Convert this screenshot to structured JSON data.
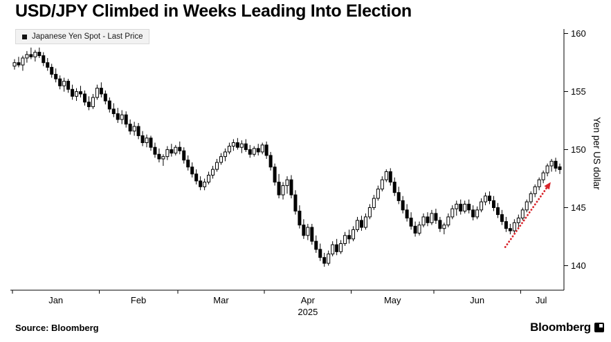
{
  "header": {
    "title": "USD/JPY Climbed in Weeks Leading Into Election"
  },
  "legend": {
    "label": "Japanese Yen Spot - Last Price"
  },
  "footer": {
    "source": "Source: Bloomberg",
    "logo_text": "Bloomberg"
  },
  "chart_data": {
    "type": "candlestick",
    "title": "USD/JPY Climbed in Weeks Leading Into Election",
    "series_name": "Japanese Yen Spot - Last Price",
    "xlabel": "",
    "ylabel": "Yen per US dollar",
    "y_ticks": [
      160,
      155,
      150,
      145,
      140
    ],
    "ylim": [
      138.0,
      160.4
    ],
    "grid": false,
    "legend_position": "top-left",
    "axis_side": "right",
    "year_label": "2025",
    "months": [
      {
        "label": "Jan",
        "days": 21
      },
      {
        "label": "Feb",
        "days": 19
      },
      {
        "label": "Mar",
        "days": 21
      },
      {
        "label": "Apr",
        "days": 21,
        "year": "2025"
      },
      {
        "label": "May",
        "days": 20
      },
      {
        "label": "Jun",
        "days": 21
      },
      {
        "label": "Jul",
        "days": 10
      }
    ],
    "candles_ohlc": [
      [
        157.2,
        157.8,
        156.9,
        157.5
      ],
      [
        157.5,
        158.0,
        157.1,
        157.3
      ],
      [
        157.3,
        158.1,
        156.8,
        157.9
      ],
      [
        157.9,
        158.5,
        157.5,
        158.2
      ],
      [
        158.2,
        158.8,
        157.8,
        158.0
      ],
      [
        158.0,
        158.6,
        157.6,
        158.4
      ],
      [
        158.4,
        158.8,
        157.9,
        158.1
      ],
      [
        158.1,
        158.4,
        157.2,
        157.5
      ],
      [
        157.5,
        157.9,
        156.8,
        157.1
      ],
      [
        157.1,
        157.4,
        156.2,
        156.5
      ],
      [
        156.5,
        157.0,
        155.8,
        156.1
      ],
      [
        156.1,
        156.4,
        155.2,
        155.5
      ],
      [
        155.5,
        156.2,
        155.0,
        155.9
      ],
      [
        155.9,
        156.1,
        154.9,
        155.2
      ],
      [
        155.2,
        155.6,
        154.3,
        154.6
      ],
      [
        154.6,
        155.3,
        154.2,
        155.0
      ],
      [
        155.0,
        155.5,
        154.5,
        154.8
      ],
      [
        154.8,
        155.1,
        153.8,
        154.1
      ],
      [
        154.1,
        154.6,
        153.4,
        153.7
      ],
      [
        153.7,
        154.8,
        153.5,
        154.5
      ],
      [
        154.5,
        155.6,
        154.3,
        155.3
      ],
      [
        155.3,
        155.8,
        154.5,
        154.8
      ],
      [
        154.8,
        155.1,
        153.9,
        154.2
      ],
      [
        154.2,
        154.5,
        153.2,
        153.5
      ],
      [
        153.5,
        154.0,
        152.8,
        153.1
      ],
      [
        153.1,
        153.6,
        152.3,
        152.6
      ],
      [
        152.6,
        153.4,
        152.2,
        153.0
      ],
      [
        153.0,
        153.3,
        151.9,
        152.2
      ],
      [
        152.2,
        152.6,
        151.3,
        151.6
      ],
      [
        151.6,
        152.4,
        151.2,
        152.0
      ],
      [
        152.0,
        152.3,
        150.9,
        151.2
      ],
      [
        151.2,
        151.6,
        150.3,
        150.6
      ],
      [
        150.6,
        151.3,
        150.2,
        151.0
      ],
      [
        151.0,
        151.2,
        149.9,
        150.2
      ],
      [
        150.2,
        150.6,
        149.3,
        149.6
      ],
      [
        149.6,
        150.1,
        148.9,
        149.2
      ],
      [
        149.2,
        149.6,
        148.6,
        149.4
      ],
      [
        149.4,
        150.3,
        149.1,
        150.0
      ],
      [
        150.0,
        150.5,
        149.4,
        149.7
      ],
      [
        149.7,
        150.4,
        149.5,
        150.2
      ],
      [
        150.2,
        150.7,
        149.6,
        149.9
      ],
      [
        149.9,
        150.2,
        148.8,
        149.1
      ],
      [
        149.1,
        149.5,
        148.2,
        148.5
      ],
      [
        148.5,
        148.9,
        147.6,
        147.9
      ],
      [
        147.9,
        148.3,
        147.0,
        147.3
      ],
      [
        147.3,
        147.7,
        146.5,
        146.8
      ],
      [
        146.8,
        147.5,
        146.5,
        147.2
      ],
      [
        147.2,
        148.1,
        147.0,
        147.8
      ],
      [
        147.8,
        148.6,
        147.5,
        148.3
      ],
      [
        148.3,
        149.2,
        148.1,
        148.9
      ],
      [
        148.9,
        149.7,
        148.7,
        149.4
      ],
      [
        149.4,
        150.1,
        149.0,
        149.8
      ],
      [
        149.8,
        150.6,
        149.6,
        150.3
      ],
      [
        150.3,
        150.9,
        149.9,
        150.6
      ],
      [
        150.6,
        151.0,
        150.0,
        150.2
      ],
      [
        150.2,
        150.8,
        149.7,
        150.5
      ],
      [
        150.5,
        150.9,
        149.8,
        150.0
      ],
      [
        150.0,
        150.4,
        149.3,
        149.6
      ],
      [
        149.6,
        150.3,
        149.4,
        150.1
      ],
      [
        150.1,
        150.5,
        149.5,
        149.8
      ],
      [
        149.8,
        150.6,
        149.6,
        150.4
      ],
      [
        150.4,
        150.7,
        149.2,
        149.5
      ],
      [
        149.5,
        149.8,
        148.2,
        148.5
      ],
      [
        148.5,
        148.8,
        146.9,
        147.2
      ],
      [
        147.2,
        147.9,
        145.8,
        146.1
      ],
      [
        146.1,
        147.2,
        145.7,
        146.9
      ],
      [
        146.9,
        147.7,
        146.2,
        147.4
      ],
      [
        147.4,
        147.8,
        145.8,
        146.1
      ],
      [
        146.1,
        146.5,
        144.4,
        144.7
      ],
      [
        144.7,
        145.2,
        143.2,
        143.5
      ],
      [
        143.5,
        144.0,
        142.3,
        142.6
      ],
      [
        142.6,
        143.6,
        142.2,
        143.3
      ],
      [
        143.3,
        143.6,
        141.8,
        142.1
      ],
      [
        142.1,
        142.6,
        141.1,
        141.4
      ],
      [
        141.4,
        141.9,
        140.4,
        140.7
      ],
      [
        140.7,
        141.1,
        139.9,
        140.2
      ],
      [
        140.2,
        141.3,
        140.0,
        141.0
      ],
      [
        141.0,
        142.1,
        140.8,
        141.8
      ],
      [
        141.8,
        142.3,
        140.9,
        141.2
      ],
      [
        141.2,
        142.2,
        141.0,
        141.9
      ],
      [
        141.9,
        142.9,
        141.7,
        142.6
      ],
      [
        142.6,
        143.1,
        141.9,
        142.3
      ],
      [
        142.3,
        143.4,
        142.1,
        143.1
      ],
      [
        143.1,
        144.2,
        142.9,
        143.9
      ],
      [
        143.9,
        144.3,
        143.0,
        143.3
      ],
      [
        143.3,
        144.5,
        143.1,
        144.2
      ],
      [
        144.2,
        145.3,
        144.0,
        145.0
      ],
      [
        145.0,
        146.1,
        144.8,
        145.8
      ],
      [
        145.8,
        146.9,
        145.6,
        146.6
      ],
      [
        146.6,
        147.7,
        146.4,
        147.4
      ],
      [
        147.4,
        148.3,
        147.2,
        148.1
      ],
      [
        148.1,
        148.4,
        146.9,
        147.2
      ],
      [
        147.2,
        147.6,
        146.0,
        146.3
      ],
      [
        146.3,
        146.8,
        145.3,
        145.6
      ],
      [
        145.6,
        146.0,
        144.5,
        144.8
      ],
      [
        144.8,
        145.3,
        143.8,
        144.1
      ],
      [
        144.1,
        144.6,
        143.1,
        143.4
      ],
      [
        143.4,
        143.8,
        142.5,
        142.8
      ],
      [
        142.8,
        143.8,
        142.6,
        143.5
      ],
      [
        143.5,
        144.5,
        143.3,
        144.2
      ],
      [
        144.2,
        144.6,
        143.4,
        143.7
      ],
      [
        143.7,
        144.8,
        143.5,
        144.5
      ],
      [
        144.5,
        144.9,
        143.6,
        143.9
      ],
      [
        143.9,
        144.2,
        142.9,
        143.2
      ],
      [
        143.2,
        143.7,
        142.7,
        143.5
      ],
      [
        143.5,
        144.5,
        143.3,
        144.2
      ],
      [
        144.2,
        145.2,
        144.0,
        144.9
      ],
      [
        144.9,
        145.6,
        144.3,
        145.3
      ],
      [
        145.3,
        145.7,
        144.4,
        144.7
      ],
      [
        144.7,
        145.6,
        144.5,
        145.3
      ],
      [
        145.3,
        145.7,
        144.5,
        144.8
      ],
      [
        144.8,
        145.2,
        143.9,
        144.2
      ],
      [
        144.2,
        145.1,
        144.0,
        144.8
      ],
      [
        144.8,
        145.8,
        144.6,
        145.5
      ],
      [
        145.5,
        146.3,
        145.2,
        146.0
      ],
      [
        146.0,
        146.4,
        145.3,
        145.6
      ],
      [
        145.6,
        146.0,
        144.7,
        145.0
      ],
      [
        145.0,
        145.4,
        144.1,
        144.4
      ],
      [
        144.4,
        144.8,
        143.5,
        143.8
      ],
      [
        143.8,
        144.2,
        142.9,
        143.2
      ],
      [
        143.2,
        143.6,
        142.7,
        143.0
      ],
      [
        143.0,
        144.0,
        142.8,
        143.7
      ],
      [
        143.7,
        144.4,
        143.3,
        144.1
      ],
      [
        144.1,
        145.0,
        143.9,
        144.8
      ],
      [
        144.8,
        145.7,
        144.6,
        145.5
      ],
      [
        145.5,
        146.4,
        145.3,
        146.2
      ],
      [
        146.2,
        147.0,
        145.9,
        146.8
      ],
      [
        146.8,
        147.6,
        146.5,
        147.4
      ],
      [
        147.4,
        148.2,
        147.1,
        148.0
      ],
      [
        148.0,
        148.8,
        147.7,
        148.6
      ],
      [
        148.6,
        149.2,
        148.1,
        149.0
      ],
      [
        149.0,
        149.3,
        148.1,
        148.4
      ],
      [
        148.4,
        148.8,
        147.9,
        148.4
      ]
    ],
    "last_price": 148.4,
    "trend_arrow": {
      "from_day": 118.8,
      "from_value": 141.6,
      "to_day": 129.8,
      "to_value": 147.2,
      "style": "dotted"
    },
    "colors": {
      "up_fill": "#ffffff",
      "down_fill": "#000000",
      "outline": "#000000",
      "axis": "#000000",
      "arrow": "#d8232a",
      "legend_bg": "#f2f2f2",
      "legend_border": "#d9d9d9"
    }
  }
}
